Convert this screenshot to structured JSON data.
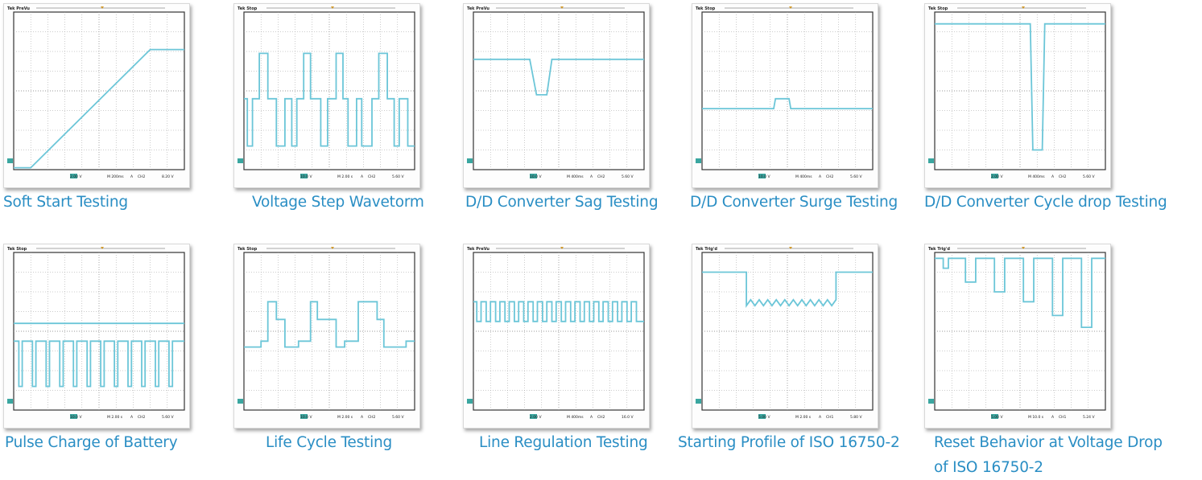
{
  "colors": {
    "trace": "#6cc6d8",
    "caption": "#2a8ec4",
    "grid": "#9a9a9a"
  },
  "chart_data": [
    {
      "type": "line",
      "title": "",
      "caption": "Soft Start Testing",
      "header": "Tek PreVu",
      "footer": [
        "2.00 V",
        "M 200ms",
        "A",
        "CH2",
        "8.20 V"
      ],
      "ylim": [
        0,
        8
      ],
      "xlim": [
        0,
        10
      ],
      "series": [
        {
          "x": [
            0,
            1,
            8,
            10
          ],
          "y": [
            0.1,
            0.1,
            6.1,
            6.1
          ]
        }
      ]
    },
    {
      "type": "line",
      "title": "",
      "caption": "Voltage Step Wavetorm",
      "header": "Tek Stop",
      "footer": [
        "10.0 V",
        "M 2.00 s",
        "A",
        "CH2",
        "5.60 V"
      ],
      "ylim": [
        0,
        8
      ],
      "xlim": [
        0,
        10
      ],
      "series": [
        {
          "x": [
            0,
            0.2,
            0.2,
            0.5,
            0.5,
            0.9,
            0.9,
            1.4,
            1.4,
            1.9,
            1.9,
            2.4,
            2.4,
            2.8,
            2.8,
            3.1,
            3.1,
            3.5,
            3.5,
            3.9,
            3.9,
            4.5,
            4.5,
            4.9,
            4.9,
            5.4,
            5.4,
            5.8,
            5.8,
            6.1,
            6.1,
            6.6,
            6.6,
            6.9,
            6.9,
            7.5,
            7.5,
            7.9,
            7.9,
            8.4,
            8.4,
            8.8,
            8.8,
            9.1,
            9.1,
            9.6,
            9.6,
            10
          ],
          "y": [
            3.6,
            3.6,
            1.2,
            1.2,
            3.6,
            3.6,
            5.9,
            5.9,
            3.6,
            3.6,
            1.2,
            1.2,
            3.6,
            3.6,
            1.2,
            1.2,
            3.6,
            3.6,
            5.9,
            5.9,
            3.6,
            3.6,
            1.2,
            1.2,
            3.6,
            3.6,
            5.9,
            5.9,
            3.6,
            3.6,
            1.2,
            1.2,
            3.6,
            3.6,
            1.2,
            1.2,
            3.6,
            3.6,
            5.9,
            5.9,
            3.6,
            3.6,
            1.2,
            1.2,
            3.6,
            3.6,
            1.2,
            1.2
          ]
        }
      ]
    },
    {
      "type": "line",
      "title": "",
      "caption": "D/D Converter Sag Testing",
      "header": "Tek PreVu",
      "footer": [
        "10.0 V",
        "M 400ms",
        "A",
        "CH2",
        "5.60 V"
      ],
      "ylim": [
        0,
        8
      ],
      "xlim": [
        0,
        10
      ],
      "series": [
        {
          "x": [
            0,
            3.3,
            3.7,
            4.3,
            4.6,
            10
          ],
          "y": [
            5.6,
            5.6,
            3.8,
            3.8,
            5.6,
            5.6
          ]
        }
      ]
    },
    {
      "type": "line",
      "title": "",
      "caption": "D/D Converter Surge Testing",
      "header": "Tek Stop",
      "footer": [
        "10.0 V",
        "M 400ms",
        "A",
        "CH2",
        "5.60 V"
      ],
      "ylim": [
        0,
        8
      ],
      "xlim": [
        0,
        10
      ],
      "series": [
        {
          "x": [
            0,
            4.2,
            4.3,
            5.1,
            5.2,
            10
          ],
          "y": [
            3.1,
            3.1,
            3.6,
            3.6,
            3.1,
            3.1
          ]
        }
      ]
    },
    {
      "type": "line",
      "title": "",
      "caption": "D/D Converter Cycle drop Testing",
      "header": "Tek Stop",
      "footer": [
        "2.00 V",
        "M 400ms",
        "A",
        "CH2",
        "5.60 V"
      ],
      "ylim": [
        0,
        8
      ],
      "xlim": [
        0,
        10
      ],
      "series": [
        {
          "x": [
            0,
            5.6,
            5.75,
            6.3,
            6.45,
            10
          ],
          "y": [
            7.4,
            7.4,
            1.0,
            1.0,
            7.4,
            7.4
          ]
        }
      ]
    },
    {
      "type": "line",
      "title": "",
      "caption": "Pulse Charge of Battery",
      "header": "Tek Stop",
      "footer": [
        "10.0 V",
        "M 2.00 s",
        "A",
        "CH2",
        "5.60 V"
      ],
      "ylim": [
        0,
        8
      ],
      "xlim": [
        0,
        10
      ],
      "series": [
        {
          "x": [
            0,
            10
          ],
          "y": [
            4.4,
            4.4
          ]
        },
        {
          "x": [
            0,
            0.3,
            0.3,
            0.5,
            0.5,
            1.1,
            1.1,
            1.3,
            1.3,
            1.9,
            1.9,
            2.1,
            2.1,
            2.7,
            2.7,
            2.9,
            2.9,
            3.5,
            3.5,
            3.7,
            3.7,
            4.3,
            4.3,
            4.5,
            4.5,
            5.1,
            5.1,
            5.3,
            5.3,
            5.9,
            5.9,
            6.1,
            6.1,
            6.7,
            6.7,
            6.9,
            6.9,
            7.5,
            7.5,
            7.7,
            7.7,
            8.3,
            8.3,
            8.5,
            8.5,
            9.1,
            9.1,
            9.3,
            9.3,
            10
          ],
          "y": [
            3.5,
            3.5,
            1.2,
            1.2,
            3.5,
            3.5,
            1.2,
            1.2,
            3.5,
            3.5,
            1.2,
            1.2,
            3.5,
            3.5,
            1.2,
            1.2,
            3.5,
            3.5,
            1.2,
            1.2,
            3.5,
            3.5,
            1.2,
            1.2,
            3.5,
            3.5,
            1.2,
            1.2,
            3.5,
            3.5,
            1.2,
            1.2,
            3.5,
            3.5,
            1.2,
            1.2,
            3.5,
            3.5,
            1.2,
            1.2,
            3.5,
            3.5,
            1.2,
            1.2,
            3.5,
            3.5,
            1.2,
            1.2,
            3.5,
            3.5
          ]
        }
      ]
    },
    {
      "type": "line",
      "title": "",
      "caption": "Life Cycle Testing",
      "header": "Tek Stop",
      "footer": [
        "10.0 V",
        "M 2.00 s",
        "A",
        "CH2",
        "5.60 V"
      ],
      "ylim": [
        0,
        8
      ],
      "xlim": [
        0,
        10
      ],
      "series": [
        {
          "x": [
            0,
            1,
            1,
            1.4,
            1.4,
            1.9,
            1.9,
            2.4,
            2.4,
            3.2,
            3.2,
            3.9,
            3.9,
            4.3,
            4.3,
            5.4,
            5.4,
            5.9,
            5.9,
            6.7,
            6.7,
            7.8,
            7.8,
            8.2,
            8.2,
            9.5,
            9.5,
            10
          ],
          "y": [
            3.2,
            3.2,
            3.5,
            3.5,
            5.5,
            5.5,
            4.6,
            4.6,
            3.2,
            3.2,
            3.5,
            3.5,
            5.5,
            5.5,
            4.6,
            4.6,
            3.2,
            3.2,
            3.5,
            3.5,
            5.5,
            5.5,
            4.6,
            4.6,
            3.2,
            3.2,
            3.5,
            3.5
          ]
        }
      ]
    },
    {
      "type": "line",
      "title": "",
      "caption": "Line Regulation Testing",
      "header": "Tek PreVu",
      "footer": [
        "2.00 V",
        "M 400ms",
        "A",
        "CH2",
        "16.0 V"
      ],
      "ylim": [
        0,
        8
      ],
      "xlim": [
        0,
        10
      ],
      "series": [
        {
          "x": [
            0,
            0.2,
            0.2,
            0.45,
            0.45,
            0.75,
            0.75,
            1.0,
            1.0,
            1.3,
            1.3,
            1.55,
            1.55,
            1.85,
            1.85,
            2.1,
            2.1,
            2.4,
            2.4,
            2.65,
            2.65,
            2.95,
            2.95,
            3.2,
            3.2,
            3.5,
            3.5,
            3.75,
            3.75,
            4.05,
            4.05,
            4.3,
            4.3,
            4.6,
            4.6,
            4.85,
            4.85,
            5.15,
            5.15,
            5.4,
            5.4,
            5.7,
            5.7,
            5.95,
            5.95,
            6.25,
            6.25,
            6.5,
            6.5,
            6.8,
            6.8,
            7.05,
            7.05,
            7.35,
            7.35,
            7.6,
            7.6,
            7.9,
            7.9,
            8.15,
            8.15,
            8.45,
            8.45,
            8.7,
            8.7,
            9.0,
            9.0,
            9.25,
            9.25,
            9.55,
            9.55,
            10
          ],
          "y": [
            5.5,
            5.5,
            4.5,
            4.5,
            5.5,
            5.5,
            4.5,
            4.5,
            5.5,
            5.5,
            4.5,
            4.5,
            5.5,
            5.5,
            4.5,
            4.5,
            5.5,
            5.5,
            4.5,
            4.5,
            5.5,
            5.5,
            4.5,
            4.5,
            5.5,
            5.5,
            4.5,
            4.5,
            5.5,
            5.5,
            4.5,
            4.5,
            5.5,
            5.5,
            4.5,
            4.5,
            5.5,
            5.5,
            4.5,
            4.5,
            5.5,
            5.5,
            4.5,
            4.5,
            5.5,
            5.5,
            4.5,
            4.5,
            5.5,
            5.5,
            4.5,
            4.5,
            5.5,
            5.5,
            4.5,
            4.5,
            5.5,
            5.5,
            4.5,
            4.5,
            5.5,
            5.5,
            4.5,
            4.5,
            5.5,
            5.5,
            4.5,
            4.5,
            5.5,
            5.5,
            4.5,
            4.5
          ]
        }
      ]
    },
    {
      "type": "line",
      "title": "",
      "caption": "Starting Profile of ISO 16750-2",
      "header": "Tek Trig'd",
      "footer": [
        "5.00 V",
        "M 2.00 s",
        "A",
        "CH1",
        "5.80 V"
      ],
      "ylim": [
        0,
        8
      ],
      "xlim": [
        0,
        10
      ],
      "series": [
        {
          "x": [
            0,
            2.6,
            2.6,
            2.85,
            3.1,
            3.35,
            3.6,
            3.85,
            4.1,
            4.35,
            4.6,
            4.85,
            5.1,
            5.35,
            5.6,
            5.85,
            6.1,
            6.35,
            6.6,
            6.85,
            7.1,
            7.35,
            7.6,
            7.85,
            7.85,
            10
          ],
          "y": [
            7.0,
            7.0,
            5.3,
            5.6,
            5.3,
            5.6,
            5.3,
            5.6,
            5.3,
            5.6,
            5.3,
            5.6,
            5.3,
            5.6,
            5.3,
            5.6,
            5.3,
            5.6,
            5.3,
            5.6,
            5.3,
            5.6,
            5.3,
            5.6,
            7.0,
            7.0
          ]
        }
      ]
    },
    {
      "type": "line",
      "title": "",
      "caption": "Reset Behavior at Voltage Drop of ISO 16750-2",
      "header": "Tek Trig'd",
      "footer": [
        "5.00 V",
        "M 10.0 s",
        "A",
        "CH1",
        "5.24 V"
      ],
      "ylim": [
        0,
        8
      ],
      "xlim": [
        0,
        10
      ],
      "series": [
        {
          "x": [
            0,
            0.5,
            0.5,
            0.8,
            0.8,
            1.8,
            1.8,
            2.4,
            2.4,
            3.5,
            3.5,
            4.1,
            4.1,
            5.2,
            5.2,
            5.8,
            5.8,
            6.9,
            6.9,
            7.5,
            7.5,
            8.6,
            8.6,
            9.2,
            9.2,
            10
          ],
          "y": [
            7.7,
            7.7,
            7.2,
            7.2,
            7.7,
            7.7,
            6.5,
            6.5,
            7.7,
            7.7,
            6.0,
            6.0,
            7.7,
            7.7,
            5.5,
            5.5,
            7.7,
            7.7,
            4.8,
            4.8,
            7.7,
            7.7,
            4.2,
            4.2,
            7.7,
            7.7
          ]
        }
      ]
    }
  ]
}
